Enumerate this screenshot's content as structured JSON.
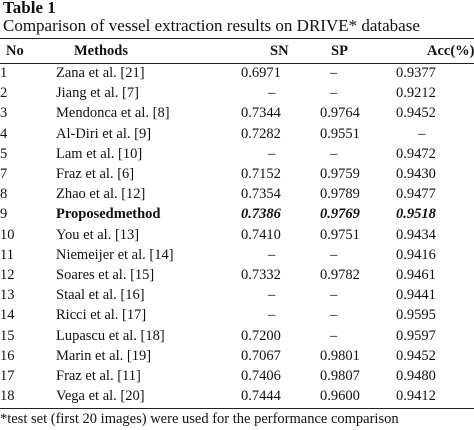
{
  "caption": {
    "label": "Table 1",
    "text": "Comparison of vessel extraction results on DRIVE* database"
  },
  "table": {
    "headers": {
      "no": "No",
      "method": "Methods",
      "sn": "SN",
      "sp": "SP",
      "acc": "Acc(%)"
    },
    "rows": [
      {
        "no": "1",
        "method": "Zana et al. [21]",
        "sn": "0.6971",
        "sp": "–",
        "acc": "0.9377"
      },
      {
        "no": "2",
        "method": "Jiang et al. [7]",
        "sn": "–",
        "sp": "–",
        "acc": "0.9212"
      },
      {
        "no": "3",
        "method": "Mendonca et al. [8]",
        "sn": "0.7344",
        "sp": "0.9764",
        "acc": "0.9452"
      },
      {
        "no": "4",
        "method": "Al-Diri et al. [9]",
        "sn": "0.7282",
        "sp": "0.9551",
        "acc": "–"
      },
      {
        "no": "5",
        "method": "Lam et al. [10]",
        "sn": "–",
        "sp": "–",
        "acc": "0.9472"
      },
      {
        "no": "7",
        "method": "Fraz et al. [6]",
        "sn": "0.7152",
        "sp": "0.9759",
        "acc": "0.9430"
      },
      {
        "no": "8",
        "method": "Zhao et al. [12]",
        "sn": "0.7354",
        "sp": "0.9789",
        "acc": "0.9477"
      },
      {
        "no": "9",
        "method": "Proposedmethod",
        "sn": "0.7386",
        "sp": "0.9769",
        "acc": "0.9518",
        "highlight": true
      },
      {
        "no": "10",
        "method": "You et al. [13]",
        "sn": "0.7410",
        "sp": "0.9751",
        "acc": "0.9434"
      },
      {
        "no": "11",
        "method": "Niemeijer et al. [14]",
        "sn": "–",
        "sp": "–",
        "acc": "0.9416"
      },
      {
        "no": "12",
        "method": "Soares et al. [15]",
        "sn": "0.7332",
        "sp": "0.9782",
        "acc": "0.9461"
      },
      {
        "no": "13",
        "method": "Staal et al. [16]",
        "sn": "–",
        "sp": "–",
        "acc": "0.9441"
      },
      {
        "no": "14",
        "method": "Ricci et al. [17]",
        "sn": "–",
        "sp": "–",
        "acc": "0.9595"
      },
      {
        "no": "15",
        "method": "Lupascu et al. [18]",
        "sn": "0.7200",
        "sp": "–",
        "acc": "0.9597"
      },
      {
        "no": "16",
        "method": "Marin et al. [19]",
        "sn": "0.7067",
        "sp": "0.9801",
        "acc": "0.9452"
      },
      {
        "no": "17",
        "method": "Fraz et al. [11]",
        "sn": "0.7406",
        "sp": "0.9807",
        "acc": "0.9480"
      },
      {
        "no": "18",
        "method": "Vega et al. [20]",
        "sn": "0.7444",
        "sp": "0.9600",
        "acc": "0.9412"
      }
    ]
  },
  "footnote": "*test set (first 20 images) were used for the performance comparison"
}
